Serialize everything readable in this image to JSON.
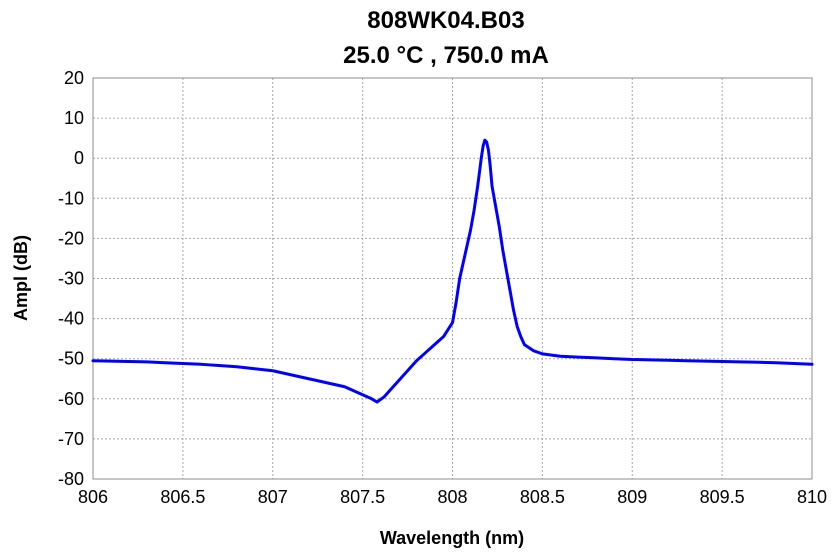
{
  "chart_data": {
    "type": "line",
    "title": "808WK04.B03",
    "subtitle": "25.0 °C , 750.0 mA",
    "xlabel": "Wavelength (nm)",
    "ylabel": "Ampl (dB)",
    "xlim": [
      806,
      810
    ],
    "ylim": [
      -80,
      20
    ],
    "x_ticks": [
      806,
      806.5,
      807,
      807.5,
      808,
      808.5,
      809,
      809.5,
      810
    ],
    "x_tick_labels": [
      "806",
      "806.5",
      "807",
      "807.5",
      "808",
      "808.5",
      "809",
      "809.5",
      "810"
    ],
    "y_ticks": [
      20,
      10,
      0,
      -10,
      -20,
      -30,
      -40,
      -50,
      -60,
      -70,
      -80
    ],
    "y_tick_labels": [
      "20",
      "10",
      "0",
      "-10",
      "-20",
      "-30",
      "-40",
      "-50",
      "-60",
      "-70",
      "-80"
    ],
    "grid": true,
    "legend": "none",
    "series": [
      {
        "color": "#0000ff",
        "x": [
          806.0,
          806.1,
          806.2,
          806.3,
          806.4,
          806.5,
          806.6,
          806.7,
          806.8,
          806.9,
          807.0,
          807.1,
          807.2,
          807.3,
          807.4,
          807.45,
          807.5,
          807.55,
          807.58,
          807.62,
          807.65,
          807.7,
          807.75,
          807.8,
          807.85,
          807.9,
          807.95,
          808.0,
          808.02,
          808.04,
          808.06,
          808.08,
          808.1,
          808.12,
          808.14,
          808.16,
          808.17,
          808.18,
          808.19,
          808.2,
          808.21,
          808.22,
          808.24,
          808.26,
          808.28,
          808.3,
          808.32,
          808.34,
          808.36,
          808.38,
          808.4,
          808.45,
          808.5,
          808.6,
          808.7,
          808.8,
          808.9,
          809.0,
          809.1,
          809.2,
          809.3,
          809.4,
          809.5,
          809.6,
          809.7,
          809.8,
          809.9,
          810.0
        ],
        "y": [
          -50.5,
          -50.6,
          -50.7,
          -50.8,
          -51.0,
          -51.2,
          -51.4,
          -51.7,
          -52.0,
          -52.5,
          -53.0,
          -54.0,
          -55.0,
          -56.0,
          -57.0,
          -58.0,
          -59.0,
          -60.0,
          -60.8,
          -59.5,
          -58.0,
          -55.5,
          -53.0,
          -50.5,
          -48.5,
          -46.5,
          -44.5,
          -41.0,
          -36.0,
          -30.0,
          -26.0,
          -22.0,
          -18.0,
          -13.0,
          -7.0,
          0.0,
          3.0,
          4.5,
          4.0,
          2.0,
          -2.0,
          -7.0,
          -12.0,
          -17.0,
          -23.0,
          -28.0,
          -33.0,
          -38.0,
          -42.0,
          -44.5,
          -46.5,
          -48.0,
          -48.8,
          -49.4,
          -49.6,
          -49.8,
          -50.0,
          -50.2,
          -50.3,
          -50.4,
          -50.5,
          -50.6,
          -50.7,
          -50.8,
          -50.9,
          -51.0,
          -51.2,
          -51.4
        ]
      }
    ]
  }
}
